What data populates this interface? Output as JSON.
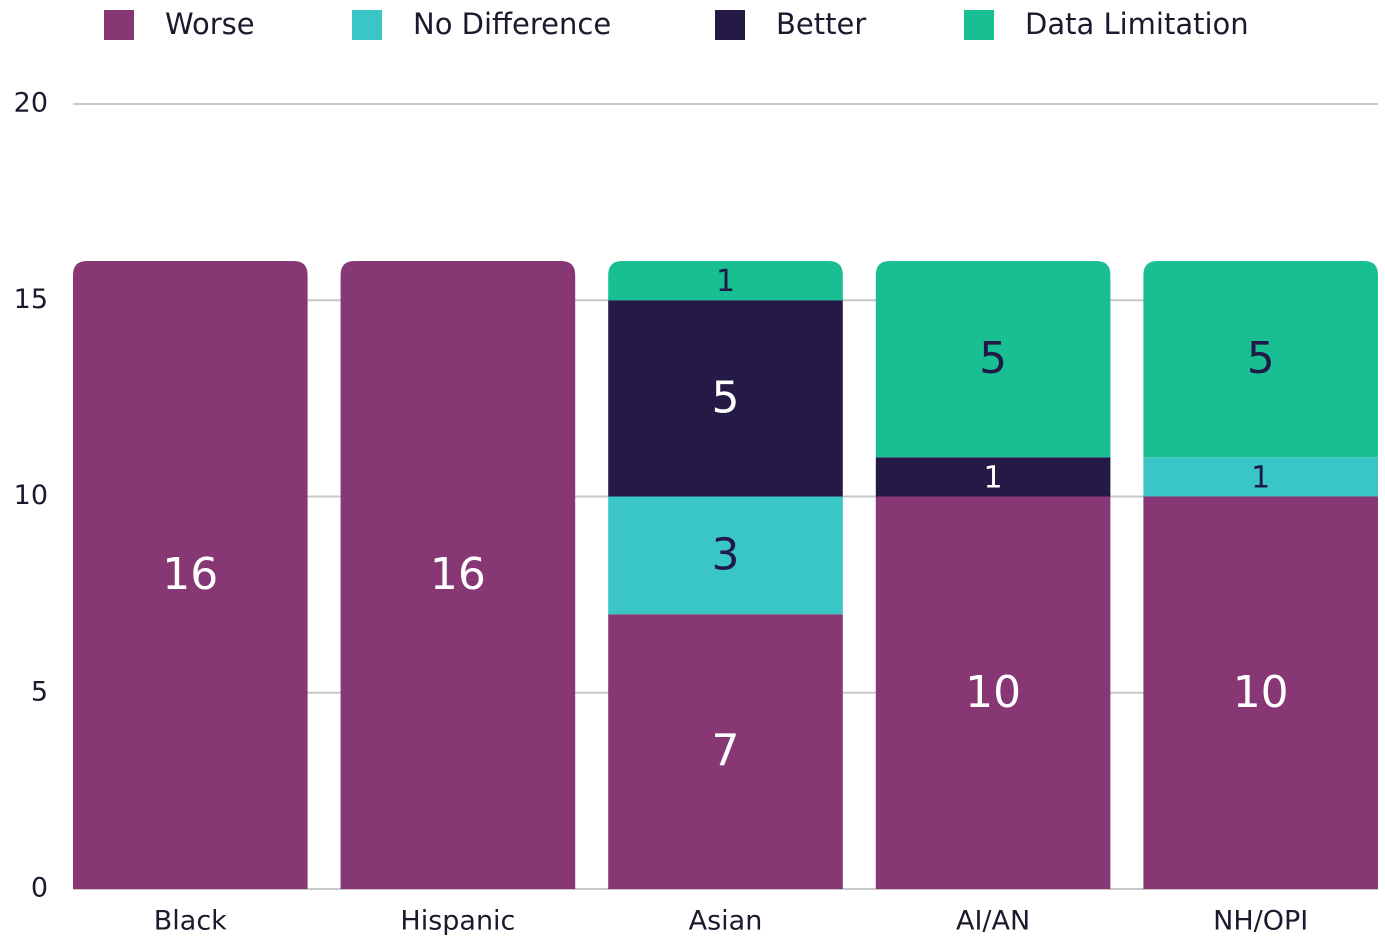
{
  "chart_data": {
    "type": "stacked_bar",
    "categories": [
      "Black",
      "Hispanic",
      "Asian",
      "AI/AN",
      "NH/OPI"
    ],
    "series": [
      {
        "name": "Worse",
        "color": "#873874",
        "label_color": "#ffffff",
        "values": [
          16,
          16,
          7,
          10,
          10
        ]
      },
      {
        "name": "No Difference",
        "color": "#3ac6c6",
        "label_color": "#1f1a45",
        "values": [
          null,
          null,
          3,
          null,
          1
        ]
      },
      {
        "name": "Better",
        "color": "#241a45",
        "label_color": "#ffffff",
        "values": [
          null,
          null,
          5,
          1,
          null
        ]
      },
      {
        "name": "Data Limitation",
        "color": "#19bf93",
        "label_color": "#1f1a45",
        "values": [
          null,
          null,
          1,
          5,
          5
        ]
      }
    ],
    "ylim": [
      0,
      20
    ],
    "yticks": [
      0,
      5,
      10,
      15,
      20
    ],
    "grid": true,
    "legend": "top"
  }
}
